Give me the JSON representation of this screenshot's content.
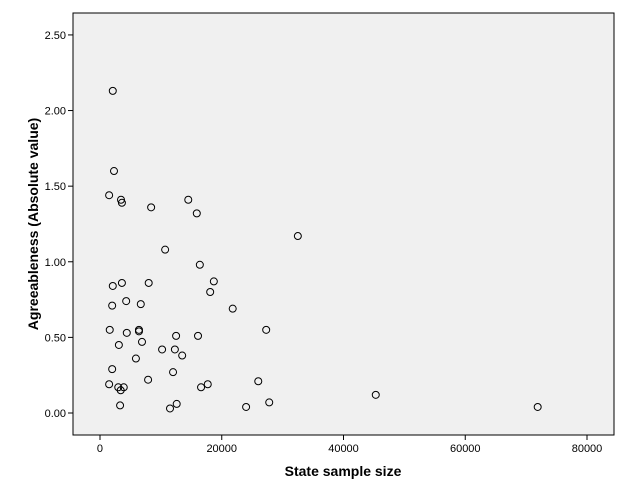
{
  "chart_data": {
    "type": "scatter",
    "x_label": "State sample size",
    "y_label": "Agreeableness (Absolute value)",
    "xlim": [
      -4435,
      84435
    ],
    "ylim": [
      -0.1455,
      2.645
    ],
    "xticks": [
      0,
      20000,
      40000,
      60000,
      80000
    ],
    "yticks": [
      {
        "value": 0,
        "label": "0.00"
      },
      {
        "value": 0.5,
        "label": "0.50"
      },
      {
        "value": 1,
        "label": "1.00"
      },
      {
        "value": 1.5,
        "label": "1.50"
      },
      {
        "value": 2,
        "label": "2.00"
      },
      {
        "value": 2.5,
        "label": "2.50"
      }
    ],
    "marker_color": "#000000",
    "background": "#f0f0f0",
    "x": [
      2100,
      2300,
      1500,
      3450,
      3600,
      8400,
      14500,
      15900,
      10700,
      32500,
      16400,
      18700,
      18100,
      3600,
      8000,
      2100,
      4300,
      6700,
      2000,
      21800,
      1600,
      6400,
      6400,
      4400,
      12500,
      16100,
      27300,
      6900,
      3100,
      10200,
      12300,
      13500,
      5900,
      2000,
      12000,
      7900,
      26000,
      1500,
      17700,
      3000,
      3900,
      16600,
      3400,
      45300,
      12600,
      3300,
      27800,
      11500,
      24000,
      71900
    ],
    "values": [
      2.13,
      1.6,
      1.44,
      1.41,
      1.39,
      1.36,
      1.41,
      1.32,
      1.08,
      1.17,
      0.98,
      0.87,
      0.8,
      0.86,
      0.86,
      0.84,
      0.74,
      0.72,
      0.71,
      0.69,
      0.55,
      0.55,
      0.54,
      0.53,
      0.51,
      0.51,
      0.55,
      0.47,
      0.45,
      0.42,
      0.42,
      0.38,
      0.36,
      0.29,
      0.27,
      0.22,
      0.21,
      0.19,
      0.19,
      0.17,
      0.17,
      0.17,
      0.15,
      0.12,
      0.06,
      0.05,
      0.07,
      0.03,
      0.04,
      0.04
    ]
  }
}
